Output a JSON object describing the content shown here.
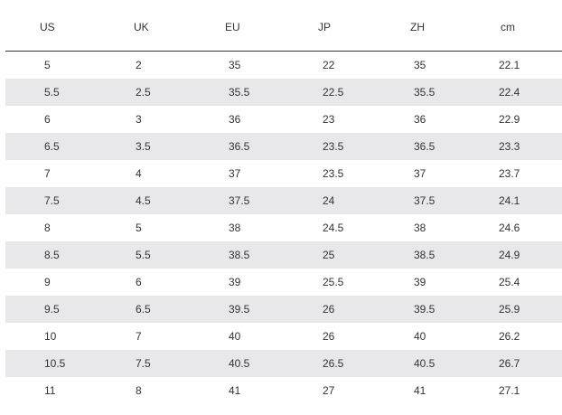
{
  "size_chart": {
    "headers": {
      "us": "US",
      "uk": "UK",
      "eu": "EU",
      "jp": "JP",
      "zh": "ZH",
      "cm": "cm"
    },
    "rows": [
      {
        "us": "5",
        "uk": "2",
        "eu": "35",
        "jp": "22",
        "zh": "35",
        "cm": "22.1"
      },
      {
        "us": "5.5",
        "uk": "2.5",
        "eu": "35.5",
        "jp": "22.5",
        "zh": "35.5",
        "cm": "22.4"
      },
      {
        "us": "6",
        "uk": "3",
        "eu": "36",
        "jp": "23",
        "zh": "36",
        "cm": "22.9"
      },
      {
        "us": "6.5",
        "uk": "3.5",
        "eu": "36.5",
        "jp": "23.5",
        "zh": "36.5",
        "cm": "23.3"
      },
      {
        "us": "7",
        "uk": "4",
        "eu": "37",
        "jp": "23.5",
        "zh": "37",
        "cm": "23.7"
      },
      {
        "us": "7.5",
        "uk": "4.5",
        "eu": "37.5",
        "jp": "24",
        "zh": "37.5",
        "cm": "24.1"
      },
      {
        "us": "8",
        "uk": "5",
        "eu": "38",
        "jp": "24.5",
        "zh": "38",
        "cm": "24.6"
      },
      {
        "us": "8.5",
        "uk": "5.5",
        "eu": "38.5",
        "jp": "25",
        "zh": "38.5",
        "cm": "24.9"
      },
      {
        "us": "9",
        "uk": "6",
        "eu": "39",
        "jp": "25.5",
        "zh": "39",
        "cm": "25.4"
      },
      {
        "us": "9.5",
        "uk": "6.5",
        "eu": "39.5",
        "jp": "26",
        "zh": "39.5",
        "cm": "25.9"
      },
      {
        "us": "10",
        "uk": "7",
        "eu": "40",
        "jp": "26",
        "zh": "40",
        "cm": "26.2"
      },
      {
        "us": "10.5",
        "uk": "7.5",
        "eu": "40.5",
        "jp": "26.5",
        "zh": "40.5",
        "cm": "26.7"
      },
      {
        "us": "11",
        "uk": "8",
        "eu": "41",
        "jp": "27",
        "zh": "41",
        "cm": "27.1"
      }
    ]
  },
  "colors": {
    "stripe": "#e8e8ea",
    "text": "#333333",
    "rule": "#333333"
  }
}
